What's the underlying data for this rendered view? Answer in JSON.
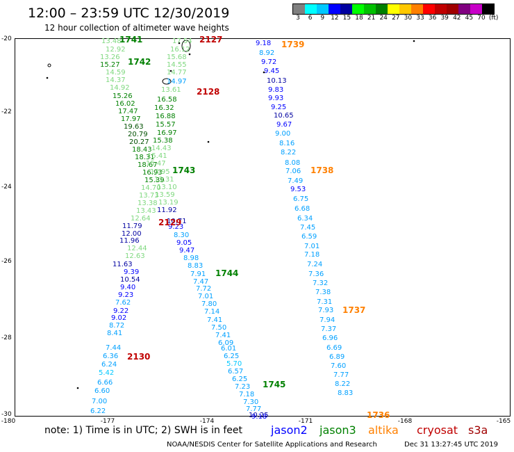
{
  "header": {
    "title": "12:00 – 23:59 UTC 12/30/2019",
    "subtitle": "12 hour collection of altimeter wave heights"
  },
  "legend": {
    "colors": [
      "#808080",
      "#00ffff",
      "#00c8ff",
      "#0000ff",
      "#0000a0",
      "#00ff00",
      "#00c000",
      "#008000",
      "#ffff00",
      "#ffc800",
      "#ff8000",
      "#ff0000",
      "#c00000",
      "#a00000",
      "#800080",
      "#c800c8",
      "#000000"
    ],
    "labels": [
      "3",
      "6",
      "9",
      "12",
      "15",
      "18",
      "21",
      "24",
      "27",
      "30",
      "33",
      "36",
      "39",
      "42",
      "45",
      "70",
      "(ft)"
    ]
  },
  "axes": {
    "lat_labels": [
      "-20",
      "-22",
      "-24",
      "-26",
      "-28",
      "-30"
    ],
    "lon_labels": [
      "-180",
      "-177",
      "-174",
      "-171",
      "-168",
      "-165"
    ]
  },
  "passes": [
    {
      "label": "1741",
      "color": "#008000"
    },
    {
      "label": "1742",
      "color": "#008000"
    },
    {
      "label": "2127",
      "color": "#c00000"
    },
    {
      "label": "2128",
      "color": "#c00000"
    },
    {
      "label": "1739",
      "color": "#ff8000"
    },
    {
      "label": "1738",
      "color": "#ff8000"
    },
    {
      "label": "1743",
      "color": "#008000"
    },
    {
      "label": "2129",
      "color": "#c00000"
    },
    {
      "label": "1744",
      "color": "#008000"
    },
    {
      "label": "1737",
      "color": "#ff8000"
    },
    {
      "label": "2130",
      "color": "#c00000"
    },
    {
      "label": "1745",
      "color": "#008000"
    },
    {
      "label": "1736",
      "color": "#ff8000"
    }
  ],
  "points": [
    {
      "v": "13.48",
      "c": "#7fd87f"
    },
    {
      "v": "12.92",
      "c": "#7fd87f"
    },
    {
      "v": "13.26",
      "c": "#7fd87f"
    },
    {
      "v": "15.27",
      "c": "#008000"
    },
    {
      "v": "14.59",
      "c": "#7fd87f"
    },
    {
      "v": "14.37",
      "c": "#7fd87f"
    },
    {
      "v": "14.92",
      "c": "#7fd87f"
    },
    {
      "v": "15.26",
      "c": "#008000"
    },
    {
      "v": "16.02",
      "c": "#008000"
    },
    {
      "v": "17.47",
      "c": "#008000"
    },
    {
      "v": "17.97",
      "c": "#008000"
    },
    {
      "v": "19.63",
      "c": "#005000"
    },
    {
      "v": "20.79",
      "c": "#005000"
    },
    {
      "v": "20.27",
      "c": "#005000"
    },
    {
      "v": "18.43",
      "c": "#008000"
    },
    {
      "v": "18.31",
      "c": "#008000"
    },
    {
      "v": "18.67",
      "c": "#008000"
    },
    {
      "v": "16.93",
      "c": "#008000"
    },
    {
      "v": "15.39",
      "c": "#008000"
    },
    {
      "v": "14.70",
      "c": "#7fd87f"
    },
    {
      "v": "13.73",
      "c": "#7fd87f"
    },
    {
      "v": "13.38",
      "c": "#7fd87f"
    },
    {
      "v": "13.43",
      "c": "#7fd87f"
    },
    {
      "v": "12.64",
      "c": "#7fd87f"
    },
    {
      "v": "11.79",
      "c": "#0000a0"
    },
    {
      "v": "12.00",
      "c": "#0000a0"
    },
    {
      "v": "11.96",
      "c": "#0000a0"
    },
    {
      "v": "12.44",
      "c": "#7fd87f"
    },
    {
      "v": "12.63",
      "c": "#7fd87f"
    },
    {
      "v": "11.63",
      "c": "#0000a0"
    },
    {
      "v": "9.39",
      "c": "#0000ff"
    },
    {
      "v": "10.54",
      "c": "#0000a0"
    },
    {
      "v": "9.40",
      "c": "#0000ff"
    },
    {
      "v": "9.23",
      "c": "#0000ff"
    },
    {
      "v": "7.62",
      "c": "#00a0ff"
    },
    {
      "v": "9.22",
      "c": "#0000ff"
    },
    {
      "v": "9.02",
      "c": "#0000ff"
    },
    {
      "v": "8.72",
      "c": "#00a0ff"
    },
    {
      "v": "8.41",
      "c": "#00a0ff"
    },
    {
      "v": "7.44",
      "c": "#00a0ff"
    },
    {
      "v": "6.36",
      "c": "#00a0ff"
    },
    {
      "v": "6.24",
      "c": "#00a0ff"
    },
    {
      "v": "5.42",
      "c": "#00c8ff"
    },
    {
      "v": "6.66",
      "c": "#00a0ff"
    },
    {
      "v": "6.60",
      "c": "#00a0ff"
    },
    {
      "v": "7.00",
      "c": "#00a0ff"
    },
    {
      "v": "6.22",
      "c": "#00a0ff"
    },
    {
      "v": "17.54",
      "c": "#7fd87f"
    },
    {
      "v": "16.12",
      "c": "#7fd87f"
    },
    {
      "v": "15.68",
      "c": "#7fd87f"
    },
    {
      "v": "14.55",
      "c": "#7fd87f"
    },
    {
      "v": "14.77",
      "c": "#7fd87f"
    },
    {
      "v": "14.97",
      "c": "#00a0ff"
    },
    {
      "v": "13.61",
      "c": "#7fd87f"
    },
    {
      "v": "16.58",
      "c": "#008000"
    },
    {
      "v": "16.32",
      "c": "#008000"
    },
    {
      "v": "16.88",
      "c": "#008000"
    },
    {
      "v": "15.57",
      "c": "#008000"
    },
    {
      "v": "16.97",
      "c": "#008000"
    },
    {
      "v": "15.38",
      "c": "#008000"
    },
    {
      "v": "14.43",
      "c": "#7fd87f"
    },
    {
      "v": "15.41",
      "c": "#7fd87f"
    },
    {
      "v": "15.47",
      "c": "#7fd87f"
    },
    {
      "v": "13.95",
      "c": "#7fd87f"
    },
    {
      "v": "13.31",
      "c": "#7fd87f"
    },
    {
      "v": "13.10",
      "c": "#7fd87f"
    },
    {
      "v": "13.59",
      "c": "#7fd87f"
    },
    {
      "v": "13.19",
      "c": "#7fd87f"
    },
    {
      "v": "11.92",
      "c": "#0000a0"
    },
    {
      "v": "10.71",
      "c": "#0000a0"
    },
    {
      "v": "9.23",
      "c": "#0000ff"
    },
    {
      "v": "8.30",
      "c": "#00a0ff"
    },
    {
      "v": "9.05",
      "c": "#0000ff"
    },
    {
      "v": "9.47",
      "c": "#0000ff"
    },
    {
      "v": "8.98",
      "c": "#00a0ff"
    },
    {
      "v": "8.83",
      "c": "#00a0ff"
    },
    {
      "v": "7.91",
      "c": "#00a0ff"
    },
    {
      "v": "7.47",
      "c": "#00a0ff"
    },
    {
      "v": "7.72",
      "c": "#00a0ff"
    },
    {
      "v": "7.01",
      "c": "#00a0ff"
    },
    {
      "v": "7.80",
      "c": "#00a0ff"
    },
    {
      "v": "7.14",
      "c": "#00a0ff"
    },
    {
      "v": "7.41",
      "c": "#00a0ff"
    },
    {
      "v": "7.50",
      "c": "#00a0ff"
    },
    {
      "v": "7.41",
      "c": "#00a0ff"
    },
    {
      "v": "6.09",
      "c": "#00a0ff"
    },
    {
      "v": "6.01",
      "c": "#00a0ff"
    },
    {
      "v": "6.25",
      "c": "#00a0ff"
    },
    {
      "v": "5.70",
      "c": "#00c8ff"
    },
    {
      "v": "6.57",
      "c": "#00a0ff"
    },
    {
      "v": "6.25",
      "c": "#00a0ff"
    },
    {
      "v": "7.23",
      "c": "#00a0ff"
    },
    {
      "v": "7.18",
      "c": "#00a0ff"
    },
    {
      "v": "7.30",
      "c": "#00a0ff"
    },
    {
      "v": "7.77",
      "c": "#00a0ff"
    },
    {
      "v": "10.25",
      "c": "#0000a0"
    },
    {
      "v": "9.18",
      "c": "#0000ff"
    },
    {
      "v": "9.18",
      "c": "#0000ff"
    },
    {
      "v": "8.92",
      "c": "#00a0ff"
    },
    {
      "v": "9.72",
      "c": "#0000ff"
    },
    {
      "v": "9.45",
      "c": "#0000ff"
    },
    {
      "v": "10.13",
      "c": "#0000a0"
    },
    {
      "v": "9.83",
      "c": "#0000ff"
    },
    {
      "v": "9.93",
      "c": "#0000ff"
    },
    {
      "v": "9.25",
      "c": "#0000ff"
    },
    {
      "v": "10.65",
      "c": "#0000a0"
    },
    {
      "v": "9.67",
      "c": "#0000ff"
    },
    {
      "v": "9.00",
      "c": "#00a0ff"
    },
    {
      "v": "8.16",
      "c": "#00a0ff"
    },
    {
      "v": "8.22",
      "c": "#00a0ff"
    },
    {
      "v": "8.08",
      "c": "#00a0ff"
    },
    {
      "v": "7.06",
      "c": "#00a0ff"
    },
    {
      "v": "7.49",
      "c": "#00a0ff"
    },
    {
      "v": "9.53",
      "c": "#0000ff"
    },
    {
      "v": "6.75",
      "c": "#00a0ff"
    },
    {
      "v": "6.68",
      "c": "#00a0ff"
    },
    {
      "v": "6.34",
      "c": "#00a0ff"
    },
    {
      "v": "7.45",
      "c": "#00a0ff"
    },
    {
      "v": "6.59",
      "c": "#00a0ff"
    },
    {
      "v": "7.01",
      "c": "#00a0ff"
    },
    {
      "v": "7.18",
      "c": "#00a0ff"
    },
    {
      "v": "7.24",
      "c": "#00a0ff"
    },
    {
      "v": "7.36",
      "c": "#00a0ff"
    },
    {
      "v": "7.32",
      "c": "#00a0ff"
    },
    {
      "v": "7.38",
      "c": "#00a0ff"
    },
    {
      "v": "7.31",
      "c": "#00a0ff"
    },
    {
      "v": "7.93",
      "c": "#00a0ff"
    },
    {
      "v": "7.94",
      "c": "#00a0ff"
    },
    {
      "v": "7.37",
      "c": "#00a0ff"
    },
    {
      "v": "6.96",
      "c": "#00a0ff"
    },
    {
      "v": "6.69",
      "c": "#00a0ff"
    },
    {
      "v": "6.89",
      "c": "#00a0ff"
    },
    {
      "v": "7.60",
      "c": "#00a0ff"
    },
    {
      "v": "7.77",
      "c": "#00a0ff"
    },
    {
      "v": "8.22",
      "c": "#00a0ff"
    },
    {
      "v": "8.83",
      "c": "#00a0ff"
    }
  ],
  "footer": {
    "note": "note:  1) Time is in UTC;  2) SWH is in feet",
    "satellites": [
      {
        "name": "jason2",
        "color": "#0000ff"
      },
      {
        "name": "jason3",
        "color": "#008000"
      },
      {
        "name": "altika",
        "color": "#ff8000"
      },
      {
        "name": "cryosat",
        "color": "#c00000"
      },
      {
        "name": "s3a",
        "color": "#a00000"
      }
    ],
    "credit": "NOAA/NESDIS Center for Satellite Applications and Research",
    "timestamp": "Dec 31 13:27:45 UTC 2019"
  }
}
